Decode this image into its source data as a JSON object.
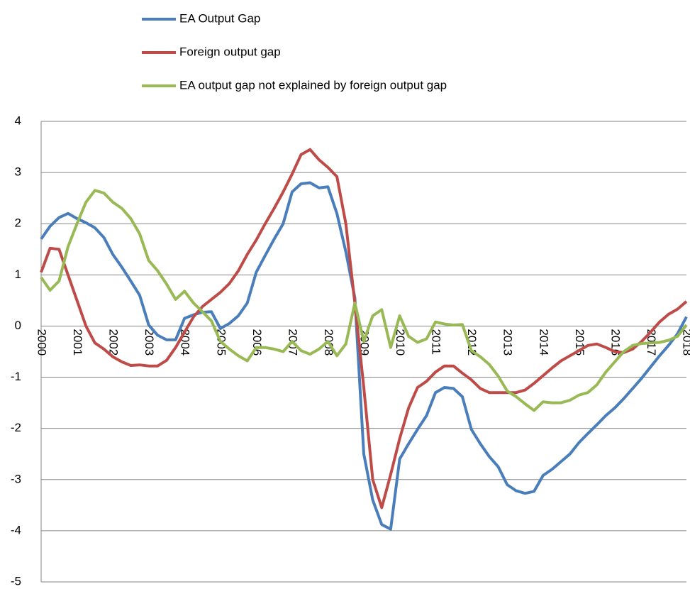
{
  "chart_data": {
    "type": "line",
    "categories": [
      "2000",
      null,
      null,
      null,
      "2001",
      null,
      null,
      null,
      "2002",
      null,
      null,
      null,
      "2003",
      null,
      null,
      null,
      "2004",
      null,
      null,
      null,
      "2005",
      null,
      null,
      null,
      "2006",
      null,
      null,
      null,
      "2007",
      null,
      null,
      null,
      "2008",
      null,
      null,
      null,
      "2009",
      null,
      null,
      null,
      "2010",
      null,
      null,
      null,
      "2011",
      null,
      null,
      null,
      "2012",
      null,
      null,
      null,
      "2013",
      null,
      null,
      null,
      "2014",
      null,
      null,
      null,
      "2015",
      null,
      null,
      null,
      "2016",
      null,
      null,
      null,
      "2017",
      null,
      null,
      null,
      "2018"
    ],
    "series": [
      {
        "name": "EA Output Gap",
        "color": "#4a7ebb",
        "values": [
          1.7,
          1.95,
          2.12,
          2.2,
          2.1,
          2.02,
          1.92,
          1.73,
          1.4,
          1.15,
          0.88,
          0.6,
          0.02,
          -0.18,
          -0.27,
          -0.27,
          0.15,
          0.22,
          0.27,
          0.28,
          -0.05,
          0.05,
          0.2,
          0.45,
          1.05,
          1.38,
          1.7,
          2.0,
          2.62,
          2.78,
          2.8,
          2.7,
          2.72,
          2.2,
          1.45,
          0.55,
          -2.5,
          -3.4,
          -3.88,
          -3.97,
          -2.6,
          -2.3,
          -2.02,
          -1.75,
          -1.3,
          -1.2,
          -1.22,
          -1.38,
          -2.02,
          -2.3,
          -2.55,
          -2.75,
          -3.1,
          -3.22,
          -3.27,
          -3.23,
          -2.92,
          -2.8,
          -2.65,
          -2.5,
          -2.28,
          -2.1,
          -1.93,
          -1.75,
          -1.6,
          -1.42,
          -1.22,
          -1.02,
          -0.8,
          -0.58,
          -0.38,
          -0.15,
          0.18
        ]
      },
      {
        "name": "Foreign output gap",
        "color": "#be4b48",
        "values": [
          1.05,
          1.52,
          1.5,
          1.0,
          0.5,
          0.0,
          -0.33,
          -0.45,
          -0.6,
          -0.7,
          -0.77,
          -0.76,
          -0.78,
          -0.78,
          -0.67,
          -0.42,
          -0.12,
          0.18,
          0.38,
          0.52,
          0.66,
          0.83,
          1.08,
          1.4,
          1.68,
          2.0,
          2.3,
          2.62,
          2.97,
          3.35,
          3.45,
          3.25,
          3.1,
          2.92,
          2.0,
          0.45,
          -1.2,
          -3.0,
          -3.55,
          -2.9,
          -2.2,
          -1.6,
          -1.2,
          -1.08,
          -0.9,
          -0.78,
          -0.78,
          -0.92,
          -1.05,
          -1.22,
          -1.3,
          -1.3,
          -1.3,
          -1.3,
          -1.25,
          -1.12,
          -0.97,
          -0.82,
          -0.68,
          -0.58,
          -0.48,
          -0.38,
          -0.35,
          -0.42,
          -0.5,
          -0.52,
          -0.45,
          -0.3,
          -0.12,
          0.08,
          0.23,
          0.33,
          0.48
        ]
      },
      {
        "name": "EA output gap not explained by foreign output gap",
        "color": "#98b954",
        "values": [
          0.95,
          0.7,
          0.88,
          1.55,
          2.0,
          2.42,
          2.65,
          2.6,
          2.42,
          2.3,
          2.1,
          1.8,
          1.28,
          1.08,
          0.82,
          0.52,
          0.68,
          0.45,
          0.28,
          0.1,
          -0.3,
          -0.45,
          -0.58,
          -0.68,
          -0.42,
          -0.42,
          -0.45,
          -0.5,
          -0.3,
          -0.48,
          -0.55,
          -0.45,
          -0.3,
          -0.58,
          -0.35,
          0.45,
          -0.3,
          0.2,
          0.32,
          -0.42,
          0.2,
          -0.2,
          -0.32,
          -0.25,
          0.08,
          0.04,
          0.02,
          0.03,
          -0.48,
          -0.6,
          -0.75,
          -0.98,
          -1.27,
          -1.38,
          -1.52,
          -1.65,
          -1.48,
          -1.5,
          -1.5,
          -1.45,
          -1.35,
          -1.3,
          -1.15,
          -0.9,
          -0.7,
          -0.5,
          -0.38,
          -0.34,
          -0.33,
          -0.32,
          -0.28,
          -0.2,
          0.02
        ]
      }
    ],
    "ylim": [
      -5,
      4
    ],
    "yticks": [
      -5,
      -4,
      -3,
      -2,
      -1,
      0,
      1,
      2,
      3,
      4
    ],
    "grid": true
  }
}
